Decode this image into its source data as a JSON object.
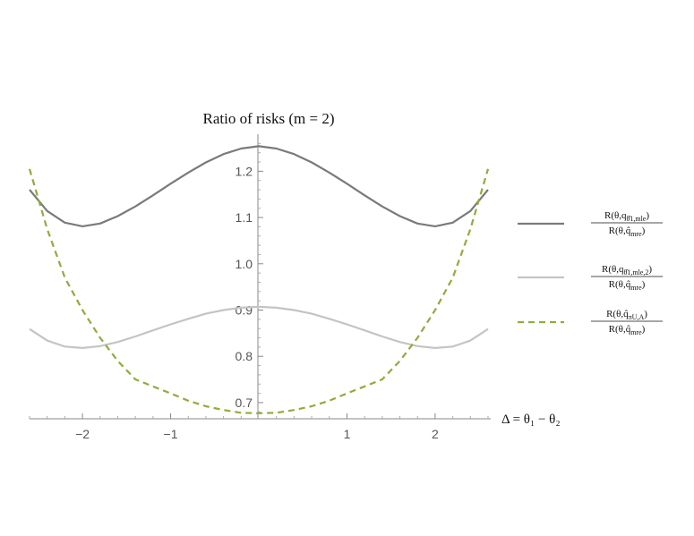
{
  "chart_data": {
    "type": "line",
    "title": "Ratio of risks (m = 2)",
    "xlabel": "Δ = θ₁ − θ₂",
    "ylabel": "",
    "xlim": [
      -2.6,
      2.6
    ],
    "ylim": [
      0.665,
      1.28
    ],
    "x_ticks": [
      -2,
      -1,
      1,
      2
    ],
    "y_ticks": [
      0.7,
      0.8,
      0.9,
      1.0,
      1.1,
      1.2
    ],
    "x_tick_labels": [
      "−2",
      "−1",
      "1",
      "2"
    ],
    "y_tick_labels": [
      "0.7",
      "0.8",
      "0.9",
      "1.0",
      "1.1",
      "1.2"
    ],
    "grid": false,
    "legend_position": "right",
    "x": [
      -2.6,
      -2.4,
      -2.2,
      -2.0,
      -1.8,
      -1.6,
      -1.4,
      -1.2,
      -1.0,
      -0.8,
      -0.6,
      -0.4,
      -0.2,
      0.0,
      0.2,
      0.4,
      0.6,
      0.8,
      1.0,
      1.2,
      1.4,
      1.6,
      1.8,
      2.0,
      2.2,
      2.4,
      2.6
    ],
    "series": [
      {
        "name": "R(θ,q_{θ̂1,mle}) / R(θ,q̂mre)",
        "color": "#7a7a7a",
        "style": "solid",
        "values": [
          1.16,
          1.114,
          1.089,
          1.081,
          1.087,
          1.103,
          1.124,
          1.148,
          1.173,
          1.197,
          1.219,
          1.237,
          1.249,
          1.254,
          1.249,
          1.237,
          1.219,
          1.197,
          1.173,
          1.148,
          1.124,
          1.103,
          1.087,
          1.081,
          1.089,
          1.114,
          1.16
        ]
      },
      {
        "name": "R(θ,q_{θ̂1,mle,2}) / R(θ,q̂mre)",
        "color": "#c4c4c4",
        "style": "solid",
        "values": [
          0.859,
          0.834,
          0.821,
          0.818,
          0.822,
          0.831,
          0.843,
          0.856,
          0.869,
          0.881,
          0.892,
          0.9,
          0.905,
          0.907,
          0.905,
          0.9,
          0.892,
          0.881,
          0.869,
          0.856,
          0.843,
          0.831,
          0.822,
          0.818,
          0.821,
          0.834,
          0.859
        ]
      },
      {
        "name": "R(θ,q̂π_{U,A}) / R(θ,q̂mre)",
        "color": "#8fac3c",
        "style": "dashed",
        "values": [
          1.205,
          1.075,
          0.97,
          0.9,
          0.84,
          0.79,
          0.75,
          0.735,
          0.72,
          0.704,
          0.692,
          0.684,
          0.678,
          0.677,
          0.678,
          0.684,
          0.692,
          0.704,
          0.72,
          0.735,
          0.75,
          0.79,
          0.84,
          0.9,
          0.97,
          1.075,
          1.205
        ]
      }
    ]
  },
  "legend": {
    "items": [
      {
        "num_main": "R(θ,q",
        "num_sub": "θ̂1,mle",
        "num_end": ")",
        "den_main": "R(θ,q̂",
        "den_sub": "mre",
        "den_end": ")"
      },
      {
        "num_main": "R(θ,q",
        "num_sub": "θ̂1,mle,2",
        "num_end": ")",
        "den_main": "R(θ,q̂",
        "den_sub": "mre",
        "den_end": ")"
      },
      {
        "num_main": "R(θ,q̂",
        "num_sub": "πU,A",
        "num_end": ")",
        "den_main": "R(θ,q̂",
        "den_sub": "mre",
        "den_end": ")"
      }
    ]
  }
}
